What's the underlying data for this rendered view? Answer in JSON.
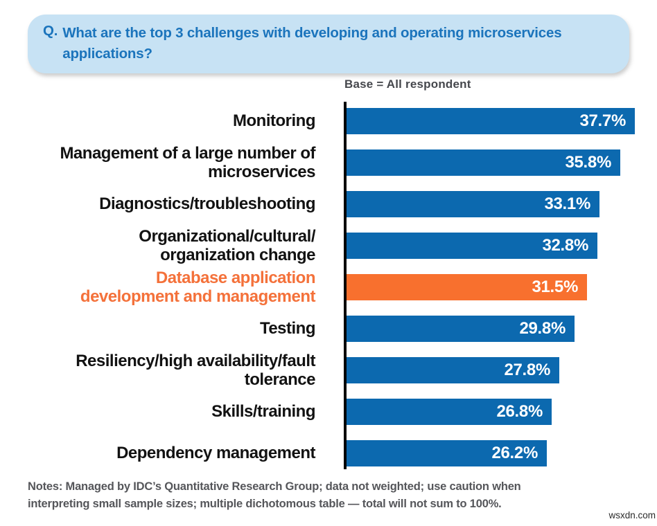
{
  "question": {
    "prefix": "Q.",
    "text": "What are the top 3 challenges with developing and operating microservices\napplications?"
  },
  "base_label": "Base = All respondent",
  "chart_data": {
    "type": "bar",
    "orientation": "horizontal",
    "title": "",
    "xlabel": "",
    "ylabel": "",
    "xlim": [
      0,
      40
    ],
    "grid": false,
    "legend": "none",
    "categories": [
      "Monitoring",
      "Management of a large number of microservices",
      "Diagnostics/troubleshooting",
      "Organizational/cultural/organization change",
      "Database application development and management",
      "Testing",
      "Resiliency/high availability/fault tolerance",
      "Skills/training",
      "Dependency management"
    ],
    "label_lines": [
      [
        "Monitoring"
      ],
      [
        "Management of a large number of",
        "microservices"
      ],
      [
        "Diagnostics/troubleshooting"
      ],
      [
        "Organizational/cultural/",
        "organization change"
      ],
      [
        "Database application",
        "development and management"
      ],
      [
        "Testing"
      ],
      [
        "Resiliency/high availability/fault",
        "tolerance"
      ],
      [
        "Skills/training"
      ],
      [
        "Dependency management"
      ]
    ],
    "values": [
      37.7,
      35.8,
      33.1,
      32.8,
      31.5,
      29.8,
      27.8,
      26.8,
      26.2
    ],
    "value_labels": [
      "37.7%",
      "35.8%",
      "33.1%",
      "32.8%",
      "31.5%",
      "29.8%",
      "27.8%",
      "26.8%",
      "26.2%"
    ],
    "highlight_index": 4,
    "colors": {
      "bar": "#0c69af",
      "highlight_bar": "#f8702e",
      "highlight_label": "#f4713a",
      "value_text": "#ffffff",
      "axis": "#000000"
    }
  },
  "notes": "Notes: Managed by IDC’s Quantitative Research Group; data not weighted; use caution when\ninterpreting small sample sizes; multiple dichotomous table — total will not sum to 100%.",
  "watermark": "wsxdn.com",
  "theme": {
    "question_bg": "#c7e2f4",
    "question_text": "#1b74bc",
    "note_text": "#55565a"
  }
}
